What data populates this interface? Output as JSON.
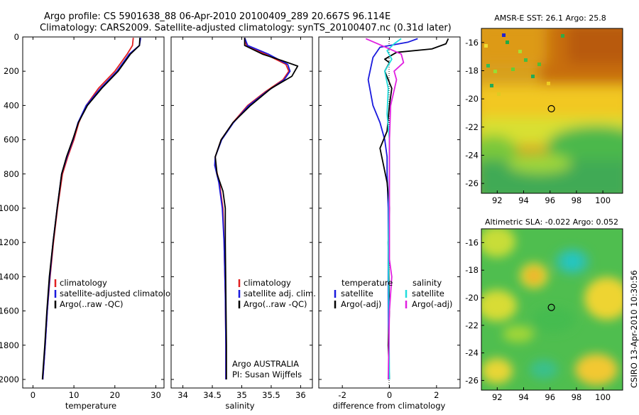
{
  "header": {
    "line1": "Argo profile: CS 5901638_88 06-Apr-2010 20100409_289 20.667S 96.114E",
    "line2": "Climatology: CARS2009. Satellite-adjusted climatology: synTS_20100407.nc (0.31d later)"
  },
  "footer": {
    "argo_label": "Argo AUSTRALIA",
    "pi_label": "PI: Susan Wijffels",
    "stamp": "CSIRO 13-Apr-2010 10:30:56"
  },
  "colors": {
    "climatology": "#e02020",
    "satellite": "#1a1add",
    "argo": "#000000",
    "salinity_satellite": "#22dddd",
    "salinity_argo": "#e020e0"
  },
  "chart_data": [
    {
      "id": "temperature",
      "type": "line",
      "xlabel": "temperature",
      "ylabel": "",
      "xlim": [
        -2.5,
        32
      ],
      "ylim": [
        0,
        2050
      ],
      "y_reversed": true,
      "xticks": [
        0,
        10,
        20,
        30
      ],
      "yticks": [
        0,
        200,
        400,
        600,
        800,
        1000,
        1200,
        1400,
        1600,
        1800,
        2000
      ],
      "legend": {
        "placement": "center-right",
        "entries": [
          "climatology",
          "satellite-adjusted climatology",
          "Argo(..raw -QC)"
        ]
      },
      "series": [
        {
          "name": "climatology",
          "color_key": "climatology",
          "points": [
            [
              24.5,
              5
            ],
            [
              24.3,
              50
            ],
            [
              23,
              100
            ],
            [
              20,
              200
            ],
            [
              16,
              300
            ],
            [
              13,
              400
            ],
            [
              11.2,
              500
            ],
            [
              10,
              600
            ],
            [
              8.5,
              700
            ],
            [
              7.2,
              800
            ],
            [
              6,
              1000
            ],
            [
              5,
              1200
            ],
            [
              4.2,
              1400
            ],
            [
              3.5,
              1600
            ],
            [
              3,
              1800
            ],
            [
              2.4,
              2000
            ]
          ]
        },
        {
          "name": "satellite-adjusted climatology",
          "color_key": "satellite",
          "points": [
            [
              26.3,
              5
            ],
            [
              26,
              50
            ],
            [
              23.5,
              100
            ],
            [
              20.5,
              200
            ],
            [
              16.5,
              300
            ],
            [
              13,
              400
            ],
            [
              11,
              500
            ],
            [
              9.8,
              600
            ],
            [
              8.3,
              700
            ],
            [
              7,
              800
            ],
            [
              5.9,
              1000
            ],
            [
              4.9,
              1200
            ],
            [
              4.1,
              1400
            ],
            [
              3.5,
              1600
            ],
            [
              3,
              1800
            ],
            [
              2.4,
              2000
            ]
          ]
        },
        {
          "name": "Argo(..raw -QC)",
          "color_key": "argo",
          "points": [
            [
              26.1,
              5
            ],
            [
              26,
              50
            ],
            [
              23.8,
              100
            ],
            [
              20.8,
              200
            ],
            [
              16.8,
              300
            ],
            [
              13.3,
              400
            ],
            [
              11.1,
              500
            ],
            [
              9.7,
              600
            ],
            [
              8.2,
              700
            ],
            [
              7,
              800
            ],
            [
              5.9,
              1000
            ],
            [
              4.9,
              1200
            ],
            [
              4,
              1400
            ],
            [
              3.4,
              1600
            ],
            [
              2.9,
              1800
            ],
            [
              2.3,
              2000
            ]
          ]
        }
      ]
    },
    {
      "id": "salinity",
      "type": "line",
      "xlabel": "salinity",
      "ylabel": "",
      "xlim": [
        33.8,
        36.2
      ],
      "ylim": [
        0,
        2050
      ],
      "y_reversed": true,
      "xticks": [
        34,
        34.5,
        35,
        35.5,
        36
      ],
      "legend": {
        "placement": "center-right",
        "entries": [
          "climatology",
          "satellite adj. clim.",
          "Argo(..raw -QC)"
        ]
      },
      "series": [
        {
          "name": "climatology",
          "color_key": "climatology",
          "points": [
            [
              35.05,
              5
            ],
            [
              35.08,
              50
            ],
            [
              35.4,
              100
            ],
            [
              35.75,
              160
            ],
            [
              35.8,
              200
            ],
            [
              35.7,
              250
            ],
            [
              35.4,
              320
            ],
            [
              35.1,
              400
            ],
            [
              34.85,
              500
            ],
            [
              34.65,
              600
            ],
            [
              34.55,
              700
            ],
            [
              34.55,
              750
            ],
            [
              34.62,
              850
            ],
            [
              34.68,
              1000
            ],
            [
              34.7,
              1200
            ],
            [
              34.72,
              1500
            ],
            [
              34.73,
              1800
            ],
            [
              34.73,
              2000
            ]
          ]
        },
        {
          "name": "satellite adj. clim.",
          "color_key": "satellite",
          "points": [
            [
              35.05,
              5
            ],
            [
              35.1,
              50
            ],
            [
              35.45,
              100
            ],
            [
              35.78,
              160
            ],
            [
              35.82,
              200
            ],
            [
              35.72,
              250
            ],
            [
              35.42,
              320
            ],
            [
              35.12,
              400
            ],
            [
              34.86,
              500
            ],
            [
              34.66,
              600
            ],
            [
              34.55,
              700
            ],
            [
              34.54,
              750
            ],
            [
              34.61,
              850
            ],
            [
              34.67,
              1000
            ],
            [
              34.7,
              1200
            ],
            [
              34.72,
              1500
            ],
            [
              34.73,
              1800
            ],
            [
              34.73,
              2000
            ]
          ]
        },
        {
          "name": "Argo(..raw -QC)",
          "color_key": "argo",
          "points": [
            [
              35.05,
              5
            ],
            [
              35.05,
              50
            ],
            [
              35.35,
              100
            ],
            [
              35.7,
              140
            ],
            [
              35.95,
              170
            ],
            [
              35.85,
              230
            ],
            [
              35.5,
              300
            ],
            [
              35.15,
              400
            ],
            [
              34.85,
              500
            ],
            [
              34.65,
              600
            ],
            [
              34.55,
              700
            ],
            [
              34.58,
              800
            ],
            [
              34.68,
              900
            ],
            [
              34.72,
              1000
            ],
            [
              34.72,
              1200
            ],
            [
              34.73,
              1500
            ],
            [
              34.74,
              1800
            ],
            [
              34.74,
              2000
            ]
          ]
        }
      ]
    },
    {
      "id": "difference",
      "type": "line",
      "xlabel": "difference from climatology",
      "ylabel": "",
      "xlim": [
        -3,
        3
      ],
      "ylim": [
        0,
        2050
      ],
      "y_reversed": true,
      "xticks": [
        -2,
        0,
        2
      ],
      "legend": {
        "placement": "center",
        "groups": [
          {
            "title": "temperature",
            "entries": [
              "satellite",
              "Argo(-adj)"
            ]
          },
          {
            "title": "salinity",
            "entries": [
              "satellite",
              "Argo(-adj)"
            ]
          }
        ]
      },
      "series": [
        {
          "name": "temperature satellite",
          "color_key": "satellite",
          "points": [
            [
              1.2,
              10
            ],
            [
              0.8,
              30
            ],
            [
              -0.4,
              60
            ],
            [
              -0.7,
              120
            ],
            [
              -0.9,
              250
            ],
            [
              -0.7,
              400
            ],
            [
              -0.4,
              500
            ],
            [
              -0.2,
              600
            ],
            [
              -0.1,
              700
            ],
            [
              -0.1,
              800
            ],
            [
              -0.05,
              1000
            ],
            [
              -0.05,
              1500
            ],
            [
              -0.02,
              2000
            ]
          ]
        },
        {
          "name": "temperature Argo(-adj)",
          "color_key": "argo",
          "points": [
            [
              2.5,
              10
            ],
            [
              2.4,
              40
            ],
            [
              1.8,
              70
            ],
            [
              0.3,
              90
            ],
            [
              -0.2,
              130
            ],
            [
              0.0,
              150
            ],
            [
              -0.2,
              200
            ],
            [
              0.1,
              300
            ],
            [
              0.0,
              400
            ],
            [
              -0.1,
              550
            ],
            [
              -0.4,
              650
            ],
            [
              -0.25,
              750
            ],
            [
              -0.1,
              850
            ],
            [
              0.0,
              1000
            ],
            [
              -0.05,
              1200
            ],
            [
              0.0,
              1600
            ],
            [
              -0.05,
              1800
            ],
            [
              0.0,
              2000
            ]
          ]
        },
        {
          "name": "salinity satellite",
          "color_key": "salinity_satellite",
          "points": [
            [
              0.5,
              10
            ],
            [
              0.2,
              40
            ],
            [
              -0.1,
              80
            ],
            [
              0.1,
              130
            ],
            [
              -0.2,
              200
            ],
            [
              -0.05,
              300
            ],
            [
              -0.1,
              450
            ],
            [
              0.0,
              600
            ],
            [
              0.0,
              800
            ],
            [
              -0.05,
              1200
            ],
            [
              0.0,
              2000
            ]
          ]
        },
        {
          "name": "salinity Argo(-adj)",
          "color_key": "salinity_argo",
          "points": [
            [
              -1.0,
              10
            ],
            [
              -0.5,
              40
            ],
            [
              0.5,
              100
            ],
            [
              0.6,
              150
            ],
            [
              0.2,
              200
            ],
            [
              0.3,
              250
            ],
            [
              0.05,
              400
            ],
            [
              0.0,
              600
            ],
            [
              0.0,
              900
            ],
            [
              0.0,
              1300
            ],
            [
              0.1,
              1400
            ],
            [
              0.0,
              1600
            ],
            [
              -0.05,
              2000
            ]
          ]
        }
      ]
    },
    {
      "id": "sst_map",
      "type": "heatmap",
      "title": "AMSR-E SST: 26.1 Argo: 25.8",
      "xlim": [
        90.8,
        101.5
      ],
      "ylim": [
        -26.7,
        -15
      ],
      "xticks": [
        92,
        94,
        96,
        98,
        100
      ],
      "yticks": [
        -16,
        -18,
        -20,
        -22,
        -24,
        -26
      ],
      "marker": {
        "lon": 96.1,
        "lat": -20.7
      }
    },
    {
      "id": "sla_map",
      "type": "heatmap",
      "title": "Altimetric SLA: -0.022 Argo: 0.052",
      "xlim": [
        90.8,
        101.5
      ],
      "ylim": [
        -26.7,
        -15
      ],
      "xticks": [
        92,
        94,
        96,
        98,
        100
      ],
      "yticks": [
        -16,
        -18,
        -20,
        -22,
        -24,
        -26
      ],
      "marker": {
        "lon": 96.1,
        "lat": -20.7
      }
    }
  ]
}
